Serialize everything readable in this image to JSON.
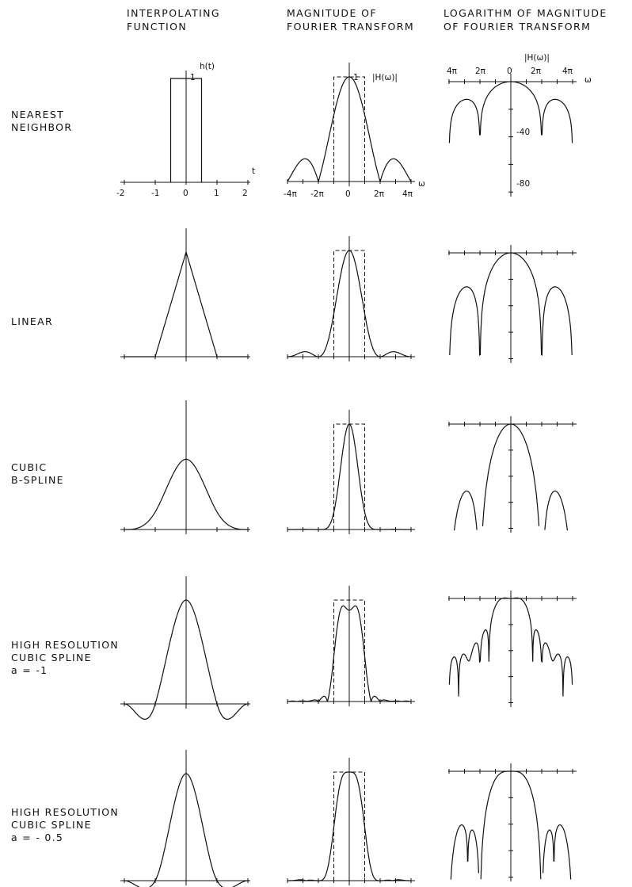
{
  "headers": {
    "col1": "INTERPOLATING\nFUNCTION",
    "col2": "MAGNITUDE OF\nFOURIER TRANSFORM",
    "col3": "LOGARITHM OF MAGNITUDE\nOF FOURIER TRANSFORM"
  },
  "rows": [
    {
      "label": "NEAREST\nNEIGHBOR",
      "kernel": "nearest"
    },
    {
      "label": "LINEAR",
      "kernel": "linear"
    },
    {
      "label": "CUBIC\nB-SPLINE",
      "kernel": "bspline"
    },
    {
      "label": "HIGH RESOLUTION\nCUBIC SPLINE\na = -1",
      "kernel": "cubic",
      "a": -1
    },
    {
      "label": "HIGH RESOLUTION\nCUBIC SPLINE\na = - 0.5",
      "kernel": "cubic",
      "a": -0.5
    }
  ],
  "annotations": {
    "h_t": "h(t)",
    "t": "t",
    "one": "1",
    "H_w": "|H(ω)|",
    "omega": "ω",
    "t_ticks": [
      "-2",
      "-1",
      "0",
      "1",
      "2"
    ],
    "w_ticks": [
      "-4π",
      "-2π",
      "0",
      "2π",
      "4π"
    ],
    "log_top_ticks": [
      "4π",
      "2π",
      "0",
      "2π",
      "4π"
    ],
    "db_ticks": [
      "-40",
      "-80"
    ]
  },
  "chart_data": {
    "type": "line",
    "panels": [
      "interpolating function h(t), t in [-2, 2]",
      "|H(ω)|, ω in [-4π, 4π], with ideal rectangular response (dashed)",
      "log |H(ω)|, ω in [-4π, 4π], range 0 to -80"
    ],
    "t_range": [
      -2,
      2
    ],
    "omega_range": [
      "-4π",
      "4π"
    ],
    "log_range": [
      0,
      -80
    ],
    "kernels": [
      "nearest neighbor",
      "linear",
      "cubic B-spline",
      "high resolution cubic spline a = -1",
      "high resolution cubic spline a = -0.5"
    ]
  }
}
